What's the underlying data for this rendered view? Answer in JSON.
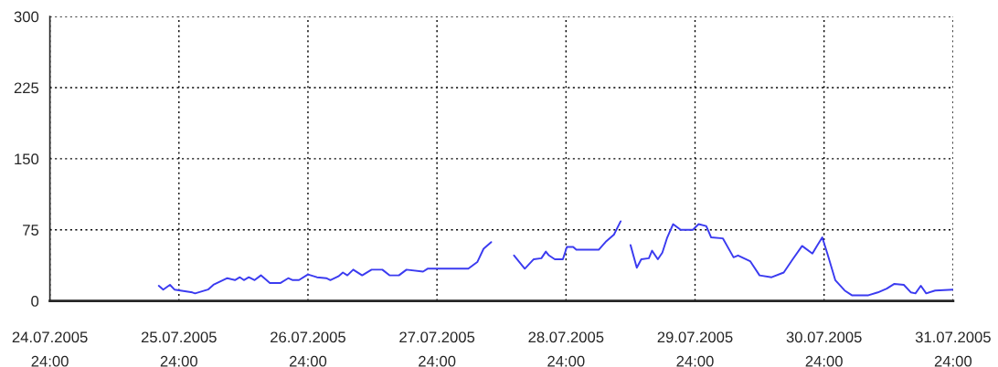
{
  "chart_data": {
    "type": "line",
    "x": [
      "2005-07-25T20:15",
      "2005-07-25T21:05",
      "2005-07-25T22:20",
      "2005-07-25T23:10",
      "2005-07-26T02:30",
      "2005-07-26T03:00",
      "2005-07-26T05:25",
      "2005-07-26T06:25",
      "2005-07-26T09:00",
      "2005-07-26T10:25",
      "2005-07-26T11:20",
      "2005-07-26T12:05",
      "2005-07-26T13:00",
      "2005-07-26T14:05",
      "2005-07-26T15:15",
      "2005-07-26T16:55",
      "2005-07-26T18:55",
      "2005-07-26T20:20",
      "2005-07-26T21:10",
      "2005-07-26T22:20",
      "2005-07-27T00:00",
      "2005-07-27T01:40",
      "2005-07-27T03:25",
      "2005-07-27T04:10",
      "2005-07-27T05:40",
      "2005-07-27T06:30",
      "2005-07-27T07:20",
      "2005-07-27T08:25",
      "2005-07-27T10:05",
      "2005-07-27T11:50",
      "2005-07-27T13:50",
      "2005-07-27T15:10",
      "2005-07-27T16:55",
      "2005-07-27T18:20",
      "2005-07-27T21:25",
      "2005-07-27T22:15",
      "2005-07-28T05:50",
      "2005-07-28T07:30",
      "2005-07-28T08:40",
      "2005-07-28T10:05",
      "2005-07-28T12:00",
      "2005-07-28T14:20",
      "2005-07-28T16:20",
      "2005-07-28T18:00",
      "2005-07-28T19:25",
      "2005-07-28T20:15",
      "2005-07-28T20:50",
      "2005-07-28T21:55",
      "2005-07-28T23:25",
      "2005-07-29T00:10",
      "2005-07-29T01:20",
      "2005-07-29T01:55",
      "2005-07-29T06:05",
      "2005-07-29T07:30",
      "2005-07-29T08:55",
      "2005-07-29T10:10",
      "2005-07-29T11:00",
      "2005-07-29T12:00",
      "2005-07-29T13:10",
      "2005-07-29T14:00",
      "2005-07-29T15:25",
      "2005-07-29T16:00",
      "2005-07-29T17:05",
      "2005-07-29T17:55",
      "2005-07-29T18:50",
      "2005-07-29T19:55",
      "2005-07-29T21:20",
      "2005-07-29T23:35",
      "2005-07-30T00:40",
      "2005-07-30T02:05",
      "2005-07-30T03:00",
      "2005-07-30T05:10",
      "2005-07-30T07:10",
      "2005-07-30T08:00",
      "2005-07-30T10:15",
      "2005-07-30T12:00",
      "2005-07-30T14:15",
      "2005-07-30T16:30",
      "2005-07-30T18:10",
      "2005-07-30T19:55",
      "2005-07-30T21:50",
      "2005-07-30T22:40",
      "2005-07-30T23:40",
      "2005-07-31T00:40",
      "2005-07-31T02:05",
      "2005-07-31T03:50",
      "2005-07-31T05:10",
      "2005-07-31T08:15",
      "2005-07-31T10:00",
      "2005-07-31T11:40",
      "2005-07-31T13:05",
      "2005-07-31T14:50",
      "2005-07-31T16:10",
      "2005-07-31T17:00",
      "2005-07-31T18:00",
      "2005-07-31T19:00",
      "2005-07-31T20:40",
      "2005-08-01T00:00"
    ],
    "series": [
      {
        "color": "#3b3bf0",
        "values": [
          16,
          12,
          17,
          12,
          9,
          8,
          12,
          17,
          24,
          22,
          25,
          22,
          25,
          22,
          27,
          19,
          19,
          24,
          22,
          22,
          28,
          25,
          24,
          22,
          26,
          30,
          27,
          33,
          27,
          33,
          33,
          27,
          27,
          33,
          31,
          34,
          34,
          41,
          55,
          62,
          null,
          48,
          34,
          44,
          45,
          52,
          48,
          44,
          44,
          57,
          57,
          54,
          54,
          63,
          70,
          84,
          null,
          59,
          35,
          44,
          45,
          53,
          44,
          51,
          67,
          81,
          75,
          75,
          81,
          79,
          67,
          66,
          46,
          48,
          42,
          27,
          25,
          30,
          44,
          58,
          50,
          58,
          67,
          49,
          22,
          11,
          6,
          6,
          9,
          13,
          18,
          17,
          9,
          8,
          16,
          8,
          11,
          12
        ]
      }
    ],
    "xlim": [
      "2005-07-25T00:00",
      "2005-08-01T00:00"
    ],
    "xticks": [
      {
        "value": "2005-07-25T00:00",
        "label": "24.07.2005\n24:00"
      },
      {
        "value": "2005-07-26T00:00",
        "label": "25.07.2005\n24:00"
      },
      {
        "value": "2005-07-27T00:00",
        "label": "26.07.2005\n24:00"
      },
      {
        "value": "2005-07-28T00:00",
        "label": "27.07.2005\n24:00"
      },
      {
        "value": "2005-07-29T00:00",
        "label": "28.07.2005\n24:00"
      },
      {
        "value": "2005-07-30T00:00",
        "label": "29.07.2005\n24:00"
      },
      {
        "value": "2005-07-31T00:00",
        "label": "30.07.2005\n24:00"
      },
      {
        "value": "2005-08-01T00:00",
        "label": "31.07.2005\n24:00"
      }
    ],
    "ylim": [
      0,
      300
    ],
    "yticks": [
      0,
      75,
      150,
      225,
      300
    ],
    "grid": true,
    "marker": "none",
    "line_style": "solid",
    "legend": false
  }
}
